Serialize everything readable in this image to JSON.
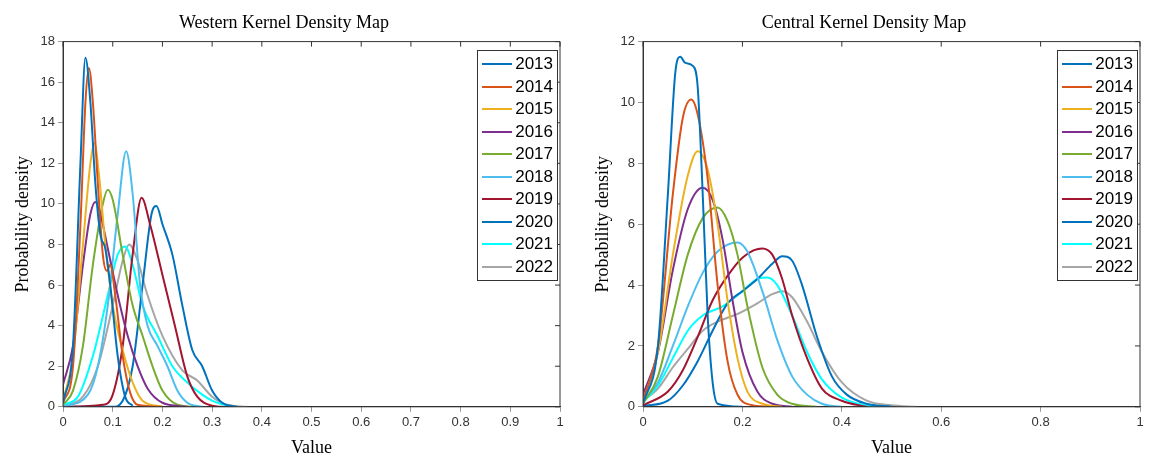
{
  "chart_data": [
    {
      "type": "line",
      "title": "Western Kernel Density Map",
      "xlabel": "Value",
      "ylabel": "Probability density",
      "xlim": [
        0,
        1
      ],
      "xticks": [
        0,
        0.1,
        0.2,
        0.3,
        0.4,
        0.5,
        0.6,
        0.7,
        0.8,
        0.9,
        1
      ],
      "ylim": [
        0,
        18
      ],
      "yticks": [
        0,
        2,
        4,
        6,
        8,
        10,
        12,
        14,
        16,
        18
      ],
      "legend": "top right",
      "marker": "none",
      "line_style": "solid",
      "series": [
        {
          "name": "2013",
          "color": "#0072bd",
          "x": [
            0,
            0.02,
            0.035,
            0.045,
            0.055,
            0.065,
            0.075,
            0.085,
            0.095,
            0.11,
            0.125,
            0.14
          ],
          "values": [
            0.2,
            3,
            12,
            17.2,
            15,
            11,
            8.5,
            7.8,
            6,
            2.5,
            0.5,
            0.05
          ]
        },
        {
          "name": "2014",
          "color": "#d95319",
          "x": [
            0,
            0.02,
            0.035,
            0.045,
            0.052,
            0.06,
            0.07,
            0.08,
            0.088,
            0.095,
            0.105,
            0.12,
            0.135,
            0.15,
            0.2
          ],
          "values": [
            0.2,
            2,
            9,
            15,
            16.7,
            15,
            11,
            7.5,
            6.7,
            7,
            5.5,
            2.5,
            0.7,
            0.1,
            0
          ]
        },
        {
          "name": "2015",
          "color": "#edb120",
          "x": [
            0,
            0.02,
            0.04,
            0.055,
            0.063,
            0.072,
            0.085,
            0.1,
            0.12,
            0.14,
            0.16,
            0.2
          ],
          "values": [
            0.3,
            2.5,
            8,
            12,
            13,
            11.5,
            8,
            5,
            2.8,
            1.2,
            0.3,
            0
          ]
        },
        {
          "name": "2016",
          "color": "#7e2f8e",
          "x": [
            0,
            0.02,
            0.04,
            0.055,
            0.065,
            0.075,
            0.09,
            0.11,
            0.13,
            0.15,
            0.17,
            0.2,
            0.25
          ],
          "values": [
            1.1,
            3,
            7,
            9.5,
            10.1,
            9.5,
            7.8,
            5.5,
            3.5,
            2,
            0.9,
            0.2,
            0
          ]
        },
        {
          "name": "2017",
          "color": "#77ac30",
          "x": [
            0,
            0.02,
            0.04,
            0.06,
            0.08,
            0.09,
            0.1,
            0.12,
            0.14,
            0.16,
            0.18,
            0.2,
            0.23,
            0.26
          ],
          "values": [
            0.1,
            0.8,
            3,
            7,
            10,
            10.7,
            10.2,
            7.5,
            5,
            3.5,
            2,
            0.8,
            0.1,
            0
          ]
        },
        {
          "name": "2018",
          "color": "#4dbeee",
          "x": [
            0,
            0.05,
            0.07,
            0.09,
            0.11,
            0.127,
            0.14,
            0.155,
            0.17,
            0.19,
            0.21,
            0.23,
            0.25,
            0.28
          ],
          "values": [
            0,
            0.6,
            2,
            5,
            9.5,
            12.6,
            10.5,
            6,
            4,
            3,
            2,
            0.8,
            0.2,
            0
          ]
        },
        {
          "name": "2019",
          "color": "#a2142f",
          "x": [
            0,
            0.08,
            0.1,
            0.12,
            0.14,
            0.158,
            0.175,
            0.2,
            0.225,
            0.25,
            0.27,
            0.3,
            0.32
          ],
          "values": [
            0,
            0.1,
            0.6,
            3,
            7.5,
            10.3,
            9,
            6.5,
            4,
            1.5,
            0.5,
            0.05,
            0
          ]
        },
        {
          "name": "2020",
          "color": "#0072bd",
          "x": [
            0,
            0.1,
            0.12,
            0.14,
            0.16,
            0.178,
            0.188,
            0.2,
            0.22,
            0.24,
            0.26,
            0.28,
            0.3,
            0.32,
            0.35
          ],
          "values": [
            0,
            0,
            0.3,
            2,
            6,
            9.5,
            9.9,
            9,
            7.5,
            5,
            2.8,
            2,
            0.8,
            0.2,
            0
          ]
        },
        {
          "name": "2021",
          "color": "#00ffff",
          "x": [
            0,
            0.03,
            0.06,
            0.09,
            0.11,
            0.125,
            0.14,
            0.16,
            0.19,
            0.22,
            0.25,
            0.28,
            0.3,
            0.33
          ],
          "values": [
            0.1,
            0.5,
            2.5,
            5.5,
            7.5,
            7.9,
            7,
            5,
            3.5,
            2,
            1.2,
            0.6,
            0.3,
            0.05
          ]
        },
        {
          "name": "2022",
          "color": "#a6a6a6",
          "x": [
            0,
            0.04,
            0.07,
            0.1,
            0.12,
            0.133,
            0.15,
            0.17,
            0.2,
            0.24,
            0.27,
            0.3,
            0.33,
            0.37
          ],
          "values": [
            0.05,
            0.5,
            2,
            5,
            7.2,
            8,
            7.2,
            5.5,
            3.5,
            1.8,
            1.3,
            0.5,
            0.1,
            0
          ]
        }
      ]
    },
    {
      "type": "line",
      "title": "Central Kernel Density Map",
      "xlabel": "Value",
      "ylabel": "Probability density",
      "xlim": [
        0,
        1
      ],
      "xticks": [
        0,
        0.2,
        0.4,
        0.6,
        0.8,
        1
      ],
      "ylim": [
        0,
        12
      ],
      "yticks": [
        0,
        2,
        4,
        6,
        8,
        10,
        12
      ],
      "legend": "top right",
      "marker": "none",
      "line_style": "solid",
      "series": [
        {
          "name": "2013",
          "color": "#0072bd",
          "x": [
            0,
            0.03,
            0.05,
            0.065,
            0.075,
            0.085,
            0.1,
            0.11,
            0.12,
            0.13,
            0.14,
            0.15,
            0.2
          ],
          "values": [
            0.1,
            2,
            7,
            11,
            11.5,
            11.3,
            11.2,
            10.5,
            7,
            3,
            0.8,
            0.1,
            0
          ]
        },
        {
          "name": "2014",
          "color": "#d95319",
          "x": [
            0,
            0.03,
            0.06,
            0.08,
            0.097,
            0.11,
            0.13,
            0.15,
            0.17,
            0.19,
            0.22,
            0.25
          ],
          "values": [
            0.2,
            2,
            7,
            9.5,
            10.1,
            9.6,
            7.5,
            4,
            1.5,
            0.4,
            0.05,
            0
          ]
        },
        {
          "name": "2015",
          "color": "#edb120",
          "x": [
            0,
            0.03,
            0.06,
            0.09,
            0.11,
            0.13,
            0.15,
            0.17,
            0.19,
            0.21,
            0.24,
            0.28
          ],
          "values": [
            0.2,
            1.8,
            5,
            7.6,
            8.4,
            7.8,
            6,
            3.5,
            1.6,
            0.5,
            0.1,
            0
          ]
        },
        {
          "name": "2016",
          "color": "#7e2f8e",
          "x": [
            0,
            0.03,
            0.06,
            0.09,
            0.12,
            0.14,
            0.16,
            0.18,
            0.2,
            0.23,
            0.26,
            0.3
          ],
          "values": [
            0.4,
            1.8,
            4.5,
            6.5,
            7.2,
            6.8,
            5.5,
            3.5,
            1.8,
            0.5,
            0.1,
            0
          ]
        },
        {
          "name": "2017",
          "color": "#77ac30",
          "x": [
            0,
            0.03,
            0.06,
            0.09,
            0.12,
            0.15,
            0.17,
            0.19,
            0.21,
            0.24,
            0.27,
            0.3,
            0.35
          ],
          "values": [
            0.1,
            1,
            3,
            5,
            6.2,
            6.55,
            6.1,
            5,
            3.3,
            1.3,
            0.4,
            0.1,
            0
          ]
        },
        {
          "name": "2018",
          "color": "#4dbeee",
          "x": [
            0,
            0.03,
            0.06,
            0.09,
            0.12,
            0.15,
            0.19,
            0.21,
            0.24,
            0.27,
            0.3,
            0.33,
            0.36,
            0.4
          ],
          "values": [
            0.2,
            0.8,
            2,
            3.3,
            4.4,
            5.1,
            5.4,
            5.1,
            3.8,
            2.2,
            1,
            0.4,
            0.1,
            0
          ]
        },
        {
          "name": "2019",
          "color": "#a2142f",
          "x": [
            0,
            0.05,
            0.08,
            0.11,
            0.14,
            0.17,
            0.2,
            0.24,
            0.26,
            0.28,
            0.3,
            0.33,
            0.36,
            0.4,
            0.45
          ],
          "values": [
            0.05,
            0.5,
            1.2,
            2.3,
            3.5,
            4.3,
            4.9,
            5.2,
            5,
            4.2,
            3,
            1.6,
            0.6,
            0.2,
            0
          ]
        },
        {
          "name": "2020",
          "color": "#0072bd",
          "x": [
            0,
            0.05,
            0.08,
            0.11,
            0.14,
            0.17,
            0.2,
            0.23,
            0.26,
            0.28,
            0.3,
            0.32,
            0.35,
            0.38,
            0.41,
            0.45,
            0.5
          ],
          "values": [
            0.02,
            0.2,
            0.7,
            1.5,
            2.5,
            3.4,
            3.8,
            4.2,
            4.7,
            4.95,
            4.8,
            4,
            2.3,
            1,
            0.4,
            0.1,
            0
          ]
        },
        {
          "name": "2021",
          "color": "#00ffff",
          "x": [
            0,
            0.03,
            0.06,
            0.09,
            0.12,
            0.16,
            0.2,
            0.23,
            0.25,
            0.27,
            0.3,
            0.33,
            0.36,
            0.4,
            0.45,
            0.5
          ],
          "values": [
            0.15,
            0.7,
            1.6,
            2.5,
            3,
            3.3,
            3.8,
            4.2,
            4.25,
            4,
            3,
            1.8,
            0.9,
            0.3,
            0.05,
            0
          ]
        },
        {
          "name": "2022",
          "color": "#a6a6a6",
          "x": [
            0,
            0.03,
            0.06,
            0.09,
            0.12,
            0.15,
            0.19,
            0.23,
            0.26,
            0.28,
            0.3,
            0.33,
            0.36,
            0.4,
            0.45,
            0.5,
            0.55
          ],
          "values": [
            0.2,
            0.6,
            1.3,
            1.9,
            2.5,
            2.8,
            3.05,
            3.4,
            3.7,
            3.8,
            3.6,
            2.8,
            1.8,
            0.8,
            0.2,
            0.05,
            0
          ]
        }
      ]
    }
  ]
}
